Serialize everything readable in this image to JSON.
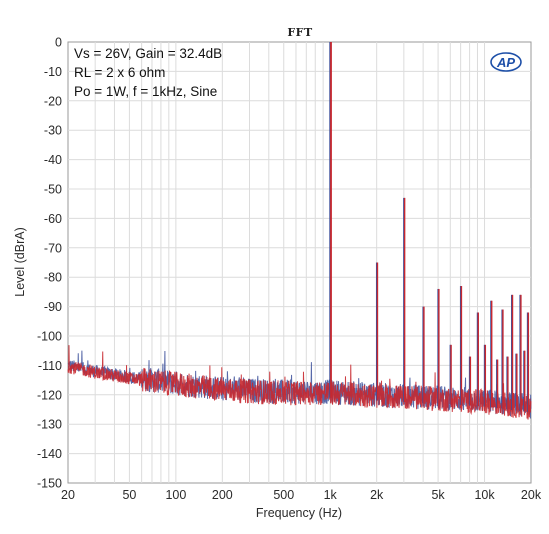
{
  "chart_data": {
    "type": "line",
    "title": "FFT",
    "xlabel": "Frequency (Hz)",
    "ylabel": "Level (dBrA)",
    "xscale": "log",
    "xlim": [
      20,
      20000
    ],
    "ylim": [
      -150,
      0
    ],
    "x_ticks": [
      20,
      50,
      100,
      200,
      500,
      1000,
      2000,
      5000,
      10000,
      20000
    ],
    "x_tick_labels": [
      "20",
      "50",
      "100",
      "200",
      "500",
      "1k",
      "2k",
      "5k",
      "10k",
      "20k"
    ],
    "y_ticks": [
      0,
      -10,
      -20,
      -30,
      -40,
      -50,
      -60,
      -70,
      -80,
      -90,
      -100,
      -110,
      -120,
      -130,
      -140,
      -150
    ],
    "y_tick_labels": [
      "0",
      "-10",
      "-20",
      "-30",
      "-40",
      "-50",
      "-60",
      "-70",
      "-80",
      "-90",
      "-100",
      "-110",
      "-120",
      "-130",
      "-140",
      "-150"
    ],
    "grid": true,
    "annotations": [
      "Vs = 26V, Gain = 32.4dB",
      "RL = 2 x 6 ohm",
      "Po = 1W, f = 1kHz, Sine"
    ],
    "logo": "AP",
    "noise_floor": {
      "x": [
        20,
        30,
        50,
        100,
        200,
        500,
        1000,
        2000,
        5000,
        10000,
        20000
      ],
      "y": [
        -110,
        -112,
        -114,
        -116,
        -118,
        -119,
        -119,
        -120,
        -121,
        -122,
        -124
      ]
    },
    "series": [
      {
        "color": "#3b4f9a",
        "peaks": [
          {
            "x": 1000,
            "y": 0
          },
          {
            "x": 2000,
            "y": -75
          },
          {
            "x": 3000,
            "y": -53
          },
          {
            "x": 4000,
            "y": -90
          },
          {
            "x": 5000,
            "y": -84
          },
          {
            "x": 6000,
            "y": -103
          },
          {
            "x": 7000,
            "y": -83
          },
          {
            "x": 8000,
            "y": -107
          },
          {
            "x": 9000,
            "y": -92
          },
          {
            "x": 10000,
            "y": -103
          },
          {
            "x": 11000,
            "y": -88
          },
          {
            "x": 12000,
            "y": -108
          },
          {
            "x": 13000,
            "y": -91
          },
          {
            "x": 14000,
            "y": -107
          },
          {
            "x": 15000,
            "y": -86
          },
          {
            "x": 16000,
            "y": -106
          },
          {
            "x": 17000,
            "y": -86
          },
          {
            "x": 18000,
            "y": -105
          },
          {
            "x": 19000,
            "y": -92
          }
        ]
      },
      {
        "color": "#c8282f",
        "peaks": [
          {
            "x": 1000,
            "y": 0
          },
          {
            "x": 2000,
            "y": -75
          },
          {
            "x": 3000,
            "y": -53
          },
          {
            "x": 4000,
            "y": -90
          },
          {
            "x": 5000,
            "y": -84
          },
          {
            "x": 6000,
            "y": -103
          },
          {
            "x": 7000,
            "y": -83
          },
          {
            "x": 8000,
            "y": -107
          },
          {
            "x": 9000,
            "y": -92
          },
          {
            "x": 10000,
            "y": -103
          },
          {
            "x": 11000,
            "y": -88
          },
          {
            "x": 12000,
            "y": -108
          },
          {
            "x": 13000,
            "y": -91
          },
          {
            "x": 14000,
            "y": -107
          },
          {
            "x": 15000,
            "y": -86
          },
          {
            "x": 16000,
            "y": -106
          },
          {
            "x": 17000,
            "y": -86
          },
          {
            "x": 18000,
            "y": -105
          },
          {
            "x": 19000,
            "y": -92
          }
        ]
      }
    ]
  }
}
